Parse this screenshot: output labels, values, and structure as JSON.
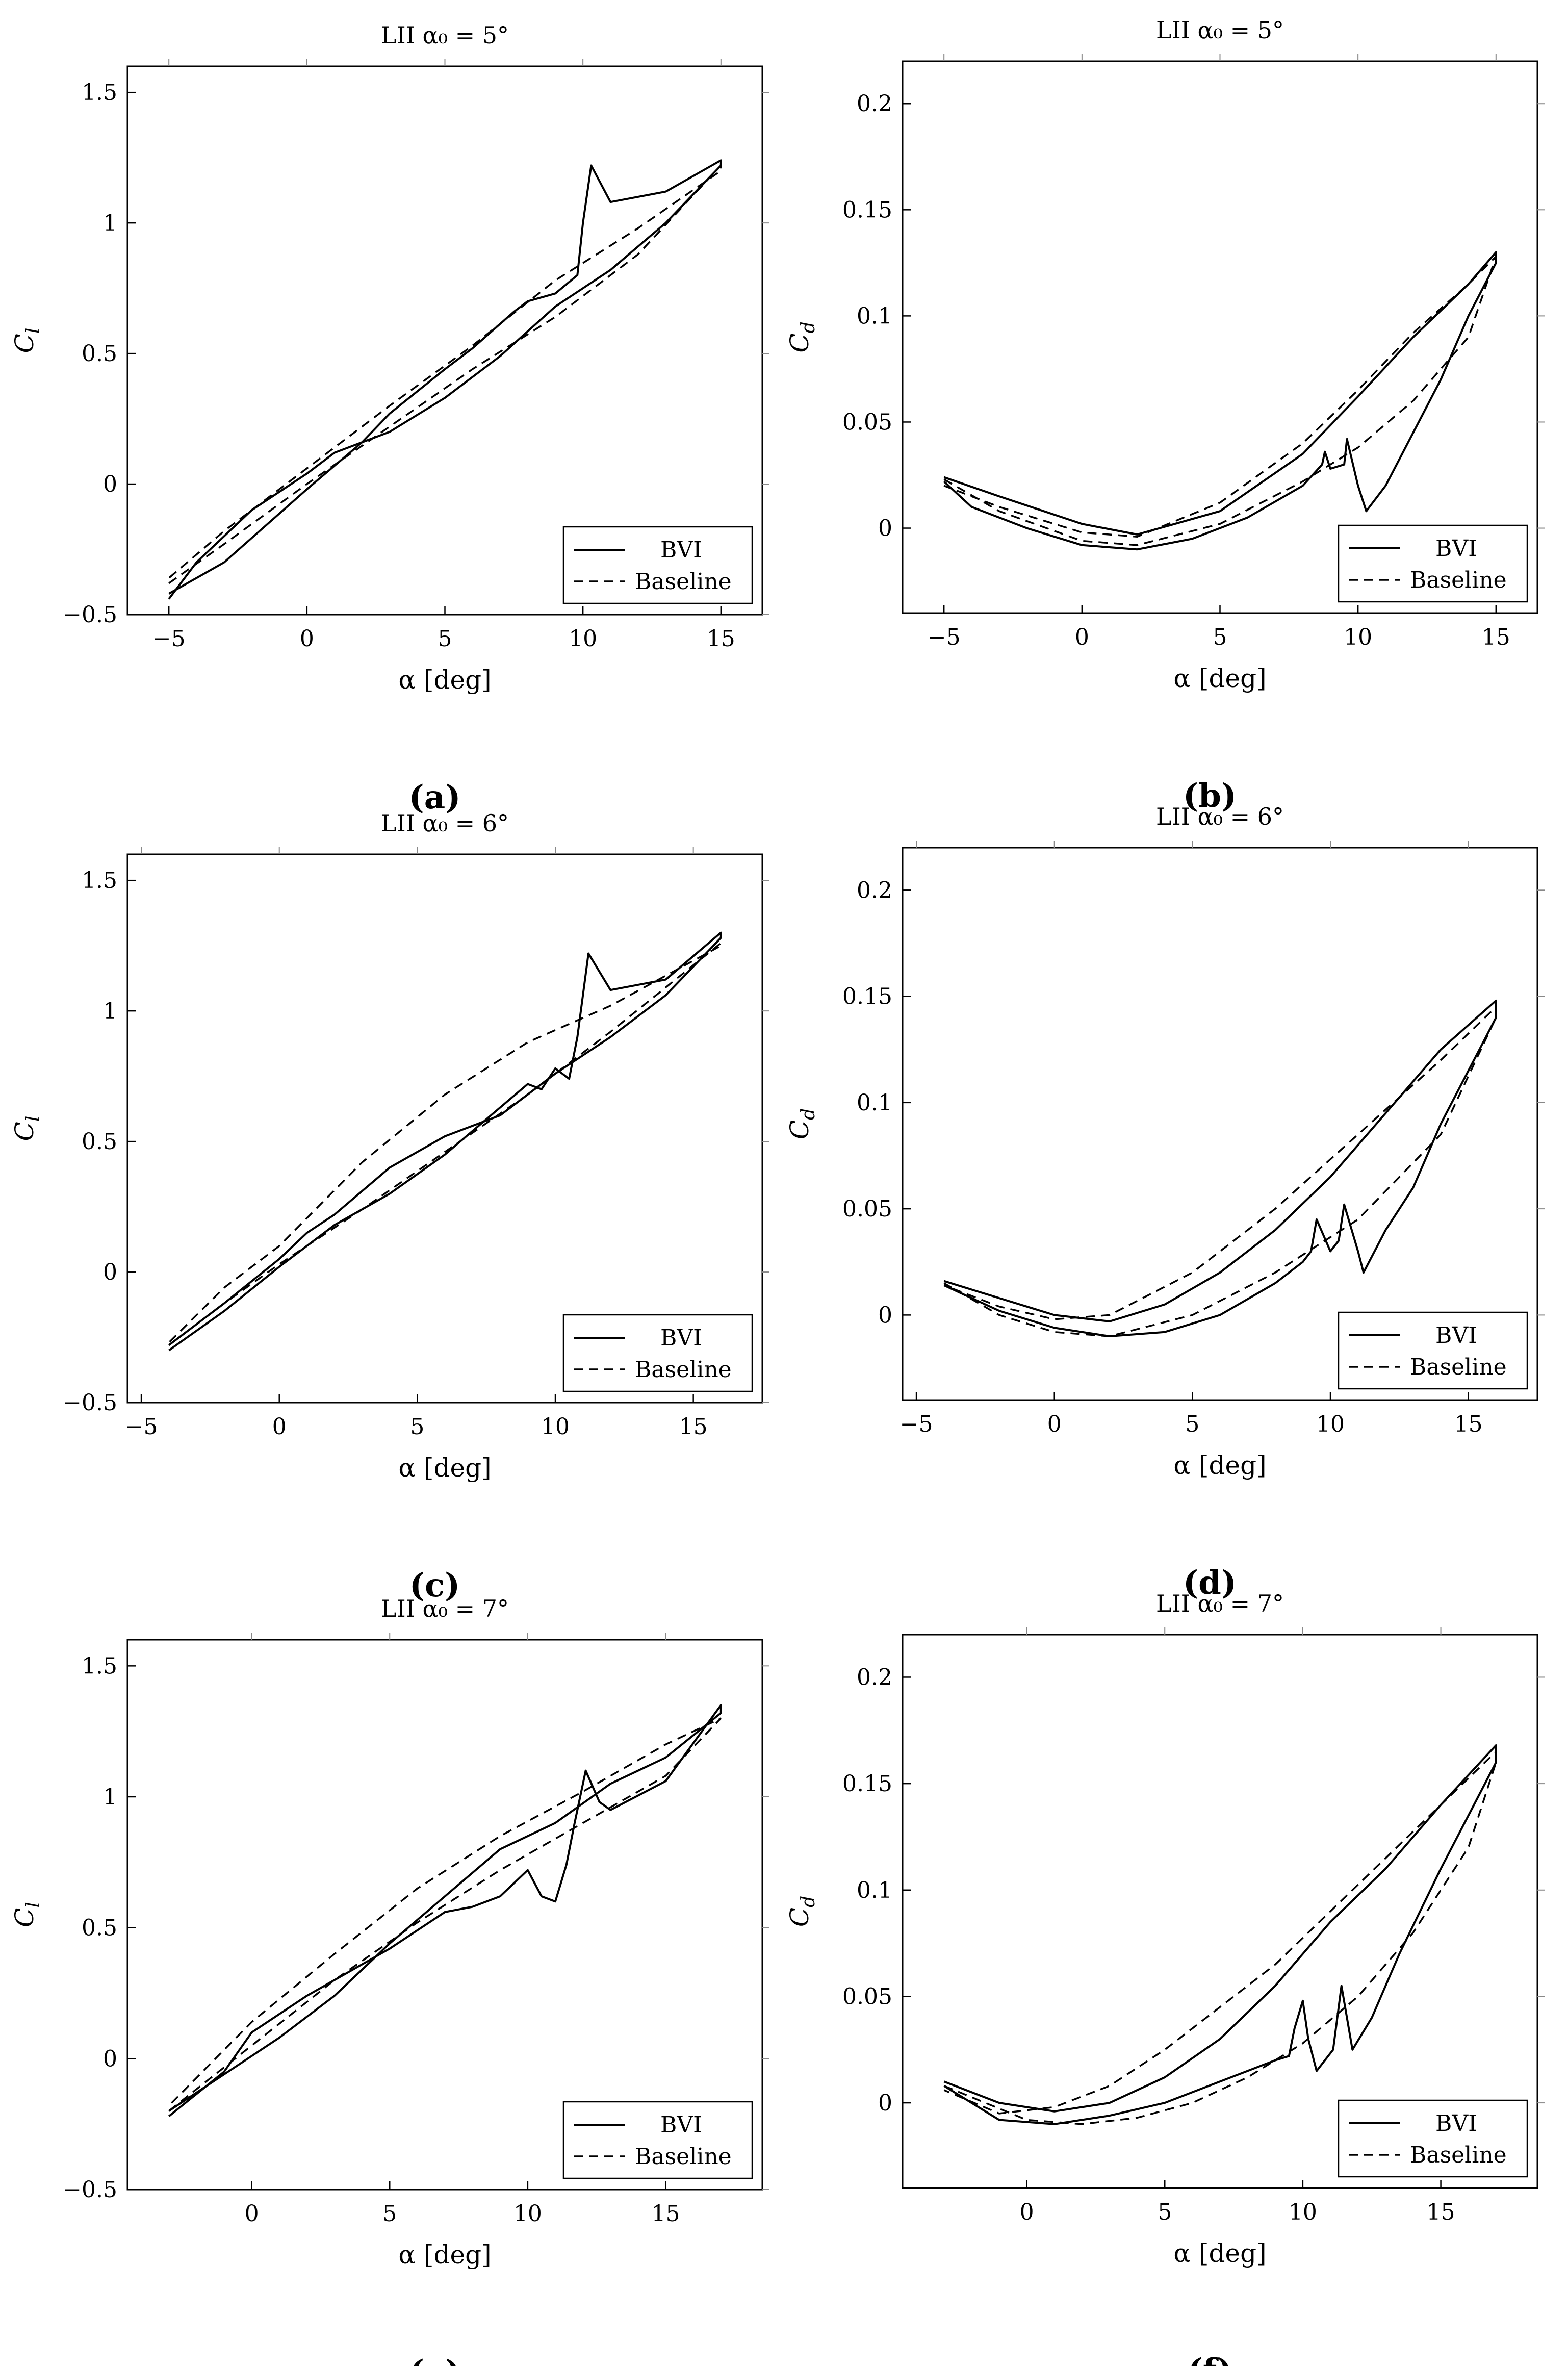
{
  "chart_data": [
    {
      "panel": "a",
      "caption": "(a)",
      "title": "LII α₀ = 5°",
      "type": "line",
      "xlabel": "α [deg]",
      "ylabel": "C_l",
      "xlim": [
        -6.5,
        16.5
      ],
      "ylim": [
        -0.5,
        1.6
      ],
      "xticks": [
        -5,
        0,
        5,
        10,
        15
      ],
      "xtick_labels": [
        "−5",
        "0",
        "5",
        "10",
        "15"
      ],
      "yticks": [
        -0.5,
        0,
        0.5,
        1,
        1.5
      ],
      "ytick_labels": [
        "−0.5",
        "0",
        "0.5",
        "1",
        "1.5"
      ],
      "legend": [
        "BVI",
        "Baseline"
      ],
      "legend_position": "bottom-right",
      "series": [
        {
          "name": "BVI",
          "style": "solid",
          "x": [
            -5,
            -3,
            0,
            2,
            3,
            5,
            6,
            7.5,
            8,
            9,
            9.8,
            10,
            10.3,
            11,
            13,
            15,
            15,
            13,
            11,
            9,
            7,
            5,
            3,
            1,
            0,
            -2,
            -4,
            -5
          ],
          "y": [
            -0.42,
            -0.3,
            -0.02,
            0.16,
            0.27,
            0.44,
            0.52,
            0.66,
            0.7,
            0.73,
            0.8,
            1.0,
            1.22,
            1.08,
            1.12,
            1.24,
            1.22,
            1.0,
            0.82,
            0.68,
            0.49,
            0.33,
            0.2,
            0.12,
            0.04,
            -0.1,
            -0.3,
            -0.44
          ]
        },
        {
          "name": "Baseline",
          "style": "dashed",
          "x": [
            -5,
            -3,
            0,
            3,
            6,
            9,
            12,
            15,
            15,
            12,
            9,
            6,
            3,
            0,
            -3,
            -5
          ],
          "y": [
            -0.38,
            -0.23,
            0.0,
            0.22,
            0.44,
            0.64,
            0.88,
            1.22,
            1.2,
            0.98,
            0.78,
            0.53,
            0.3,
            0.06,
            -0.18,
            -0.36
          ]
        }
      ]
    },
    {
      "panel": "b",
      "caption": "(b)",
      "title": "LII α₀ = 5°",
      "type": "line",
      "xlabel": "α [deg]",
      "ylabel": "C_d",
      "xlim": [
        -6.5,
        16.5
      ],
      "ylim": [
        -0.04,
        0.22
      ],
      "xticks": [
        -5,
        0,
        5,
        10,
        15
      ],
      "xtick_labels": [
        "−5",
        "0",
        "5",
        "10",
        "15"
      ],
      "yticks": [
        0,
        0.05,
        0.1,
        0.15,
        0.2
      ],
      "ytick_labels": [
        "0",
        "0.05",
        "0.1",
        "0.15",
        "0.2"
      ],
      "legend": [
        "BVI",
        "Baseline"
      ],
      "legend_position": "bottom-right",
      "series": [
        {
          "name": "BVI",
          "style": "solid",
          "x": [
            -5,
            -3,
            0,
            2,
            5,
            8,
            10,
            12,
            14,
            15,
            15,
            14,
            13,
            12,
            11,
            10.3,
            10,
            9.6,
            9.5,
            9,
            8.8,
            8.7,
            8,
            6,
            4,
            2,
            0,
            -2,
            -4,
            -5
          ],
          "y": [
            0.024,
            0.015,
            0.002,
            -0.003,
            0.008,
            0.035,
            0.062,
            0.09,
            0.115,
            0.13,
            0.125,
            0.1,
            0.07,
            0.045,
            0.02,
            0.008,
            0.02,
            0.042,
            0.03,
            0.028,
            0.036,
            0.03,
            0.02,
            0.005,
            -0.005,
            -0.01,
            -0.008,
            0.0,
            0.01,
            0.022
          ]
        },
        {
          "name": "Baseline",
          "style": "dashed",
          "x": [
            -5,
            -3,
            0,
            2,
            5,
            8,
            10,
            12,
            14,
            15,
            15,
            14,
            12,
            10,
            8,
            5,
            2,
            0,
            -3,
            -5
          ],
          "y": [
            0.023,
            0.008,
            -0.006,
            -0.008,
            0.002,
            0.022,
            0.038,
            0.06,
            0.09,
            0.128,
            0.128,
            0.115,
            0.092,
            0.065,
            0.04,
            0.012,
            -0.004,
            -0.002,
            0.01,
            0.02
          ]
        }
      ]
    },
    {
      "panel": "c",
      "caption": "(c)",
      "title": "LII α₀ = 6°",
      "type": "line",
      "xlabel": "α [deg]",
      "ylabel": "C_l",
      "xlim": [
        -5.5,
        17.5
      ],
      "ylim": [
        -0.5,
        1.6
      ],
      "xticks": [
        -5,
        0,
        5,
        10,
        15
      ],
      "xtick_labels": [
        "−5",
        "0",
        "5",
        "10",
        "15"
      ],
      "yticks": [
        -0.5,
        0,
        0.5,
        1,
        1.5
      ],
      "ytick_labels": [
        "−0.5",
        "0",
        "0.5",
        "1",
        "1.5"
      ],
      "legend": [
        "BVI",
        "Baseline"
      ],
      "legend_position": "bottom-right",
      "series": [
        {
          "name": "BVI",
          "style": "solid",
          "x": [
            -4,
            -2,
            0,
            2,
            4,
            6,
            8,
            9,
            9.5,
            10,
            10.5,
            10.8,
            11.2,
            12,
            14,
            16,
            16,
            14,
            12,
            10,
            8,
            6,
            4,
            2,
            1,
            0,
            -2,
            -4
          ],
          "y": [
            -0.3,
            -0.15,
            0.02,
            0.18,
            0.3,
            0.45,
            0.63,
            0.72,
            0.7,
            0.78,
            0.74,
            0.9,
            1.22,
            1.08,
            1.12,
            1.3,
            1.28,
            1.06,
            0.9,
            0.76,
            0.6,
            0.52,
            0.4,
            0.22,
            0.15,
            0.05,
            -0.12,
            -0.28
          ]
        },
        {
          "name": "Baseline",
          "style": "dashed",
          "x": [
            -4,
            -2,
            0,
            3,
            6,
            9,
            12,
            16,
            16,
            12,
            9,
            6,
            3,
            0,
            -2,
            -4
          ],
          "y": [
            -0.28,
            -0.12,
            0.03,
            0.24,
            0.46,
            0.68,
            0.92,
            1.26,
            1.25,
            1.02,
            0.88,
            0.68,
            0.42,
            0.1,
            -0.06,
            -0.27
          ]
        }
      ]
    },
    {
      "panel": "d",
      "caption": "(d)",
      "title": "LII α₀ = 6°",
      "type": "line",
      "xlabel": "α [deg]",
      "ylabel": "C_d",
      "xlim": [
        -5.5,
        17.5
      ],
      "ylim": [
        -0.04,
        0.22
      ],
      "xticks": [
        -5,
        0,
        5,
        10,
        15
      ],
      "xtick_labels": [
        "−5",
        "0",
        "5",
        "10",
        "15"
      ],
      "yticks": [
        0,
        0.05,
        0.1,
        0.15,
        0.2
      ],
      "ytick_labels": [
        "0",
        "0.05",
        "0.1",
        "0.15",
        "0.2"
      ],
      "legend": [
        "BVI",
        "Baseline"
      ],
      "legend_position": "bottom-right",
      "series": [
        {
          "name": "BVI",
          "style": "solid",
          "x": [
            -4,
            -2,
            0,
            2,
            4,
            6,
            8,
            10,
            12,
            14,
            16,
            16,
            14,
            13,
            12,
            11.2,
            11,
            10.5,
            10.3,
            10,
            9.5,
            9.3,
            9,
            8,
            6,
            4,
            2,
            0,
            -2,
            -4
          ],
          "y": [
            0.016,
            0.008,
            0.0,
            -0.003,
            0.005,
            0.02,
            0.04,
            0.065,
            0.095,
            0.125,
            0.148,
            0.14,
            0.09,
            0.06,
            0.04,
            0.02,
            0.03,
            0.052,
            0.035,
            0.03,
            0.045,
            0.03,
            0.025,
            0.015,
            0.0,
            -0.008,
            -0.01,
            -0.006,
            0.002,
            0.014
          ]
        },
        {
          "name": "Baseline",
          "style": "dashed",
          "x": [
            -4,
            -2,
            0,
            2,
            5,
            8,
            11,
            14,
            16,
            16,
            14,
            11,
            8,
            5,
            2,
            0,
            -2,
            -4
          ],
          "y": [
            0.015,
            0.0,
            -0.008,
            -0.01,
            0.0,
            0.02,
            0.045,
            0.085,
            0.14,
            0.145,
            0.12,
            0.085,
            0.05,
            0.02,
            0.0,
            -0.002,
            0.004,
            0.014
          ]
        }
      ]
    },
    {
      "panel": "e",
      "caption": "(e)",
      "title": "LII α₀ = 7°",
      "type": "line",
      "xlabel": "α [deg]",
      "ylabel": "C_l",
      "xlim": [
        -4.5,
        18.5
      ],
      "ylim": [
        -0.5,
        1.6
      ],
      "xticks": [
        0,
        5,
        10,
        15
      ],
      "xtick_labels": [
        "0",
        "5",
        "10",
        "15"
      ],
      "yticks": [
        -0.5,
        0,
        0.5,
        1,
        1.5
      ],
      "ytick_labels": [
        "−0.5",
        "0",
        "0.5",
        "1",
        "1.5"
      ],
      "legend": [
        "BVI",
        "Baseline"
      ],
      "legend_position": "bottom-right",
      "series": [
        {
          "name": "BVI",
          "style": "solid",
          "x": [
            -3,
            -1,
            0,
            2,
            3,
            5,
            7,
            8,
            9,
            10,
            10.5,
            11,
            11.4,
            11.7,
            12.1,
            12.6,
            13,
            15,
            17,
            17,
            15,
            13,
            11,
            9,
            7,
            5,
            3,
            1,
            -1,
            -3
          ],
          "y": [
            -0.22,
            -0.05,
            0.1,
            0.24,
            0.3,
            0.42,
            0.56,
            0.58,
            0.62,
            0.72,
            0.62,
            0.6,
            0.74,
            0.9,
            1.1,
            0.98,
            0.95,
            1.06,
            1.35,
            1.32,
            1.15,
            1.05,
            0.9,
            0.8,
            0.62,
            0.44,
            0.24,
            0.08,
            -0.06,
            -0.2
          ]
        },
        {
          "name": "Baseline",
          "style": "dashed",
          "x": [
            -3,
            0,
            3,
            6,
            9,
            12,
            15,
            17,
            17,
            15,
            12,
            9,
            6,
            3,
            0,
            -3
          ],
          "y": [
            -0.2,
            0.05,
            0.3,
            0.52,
            0.72,
            0.9,
            1.08,
            1.3,
            1.3,
            1.2,
            1.02,
            0.85,
            0.65,
            0.4,
            0.14,
            -0.18
          ]
        }
      ]
    },
    {
      "panel": "f",
      "caption": "(f)",
      "title": "LII α₀ = 7°",
      "type": "line",
      "xlabel": "α [deg]",
      "ylabel": "C_d",
      "xlim": [
        -4.5,
        18.5
      ],
      "ylim": [
        -0.04,
        0.22
      ],
      "xticks": [
        0,
        5,
        10,
        15
      ],
      "xtick_labels": [
        "0",
        "5",
        "10",
        "15"
      ],
      "yticks": [
        0,
        0.05,
        0.1,
        0.15,
        0.2
      ],
      "ytick_labels": [
        "0",
        "0.05",
        "0.1",
        "0.15",
        "0.2"
      ],
      "legend": [
        "BVI",
        "Baseline"
      ],
      "legend_position": "bottom-right",
      "series": [
        {
          "name": "BVI",
          "style": "solid",
          "x": [
            -3,
            -1,
            1,
            3,
            5,
            7,
            9,
            11,
            13,
            15,
            17,
            17,
            15,
            13.5,
            12.5,
            11.8,
            11.4,
            11.1,
            10.8,
            10.5,
            10.2,
            10,
            9.7,
            9.5,
            9,
            7,
            5,
            3,
            1,
            -1,
            -3
          ],
          "y": [
            0.01,
            0.0,
            -0.004,
            0.0,
            0.012,
            0.03,
            0.055,
            0.085,
            0.11,
            0.14,
            0.168,
            0.16,
            0.11,
            0.07,
            0.04,
            0.025,
            0.055,
            0.025,
            0.02,
            0.015,
            0.03,
            0.048,
            0.035,
            0.022,
            0.02,
            0.01,
            0.0,
            -0.006,
            -0.01,
            -0.008,
            0.008
          ]
        },
        {
          "name": "Baseline",
          "style": "dashed",
          "x": [
            -3,
            0,
            2,
            4,
            6,
            8,
            10,
            12,
            14,
            16,
            17,
            17,
            15,
            13,
            11,
            9,
            7,
            5,
            3,
            1,
            -1,
            -3
          ],
          "y": [
            0.008,
            -0.008,
            -0.01,
            -0.007,
            0.0,
            0.012,
            0.028,
            0.05,
            0.08,
            0.12,
            0.16,
            0.165,
            0.14,
            0.115,
            0.09,
            0.065,
            0.045,
            0.025,
            0.008,
            -0.002,
            -0.005,
            0.006
          ]
        }
      ]
    }
  ]
}
